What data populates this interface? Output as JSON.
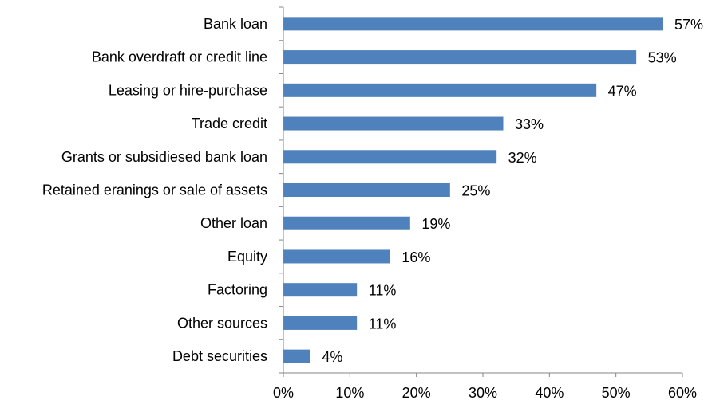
{
  "chart_data": {
    "type": "bar",
    "orientation": "horizontal",
    "categories": [
      "Bank loan",
      "Bank overdraft or credit line",
      "Leasing or hire-purchase",
      "Trade credit",
      "Grants or subsidiesed bank loan",
      "Retained eranings or sale of assets",
      "Other loan",
      "Equity",
      "Factoring",
      "Other sources",
      "Debt securities"
    ],
    "values": [
      57,
      53,
      47,
      33,
      32,
      25,
      19,
      16,
      11,
      11,
      4
    ],
    "data_labels": [
      "57%",
      "53%",
      "47%",
      "33%",
      "32%",
      "25%",
      "19%",
      "16%",
      "11%",
      "11%",
      "4%"
    ],
    "x_ticks": [
      0,
      10,
      20,
      30,
      40,
      50,
      60
    ],
    "x_tick_labels": [
      "0%",
      "10%",
      "20%",
      "30%",
      "40%",
      "50%",
      "60%"
    ],
    "xlim": [
      0,
      60
    ],
    "grid": false,
    "title": "",
    "xlabel": "",
    "ylabel": "",
    "bar_color": "#4f81bd",
    "axis_color": "#868686"
  }
}
